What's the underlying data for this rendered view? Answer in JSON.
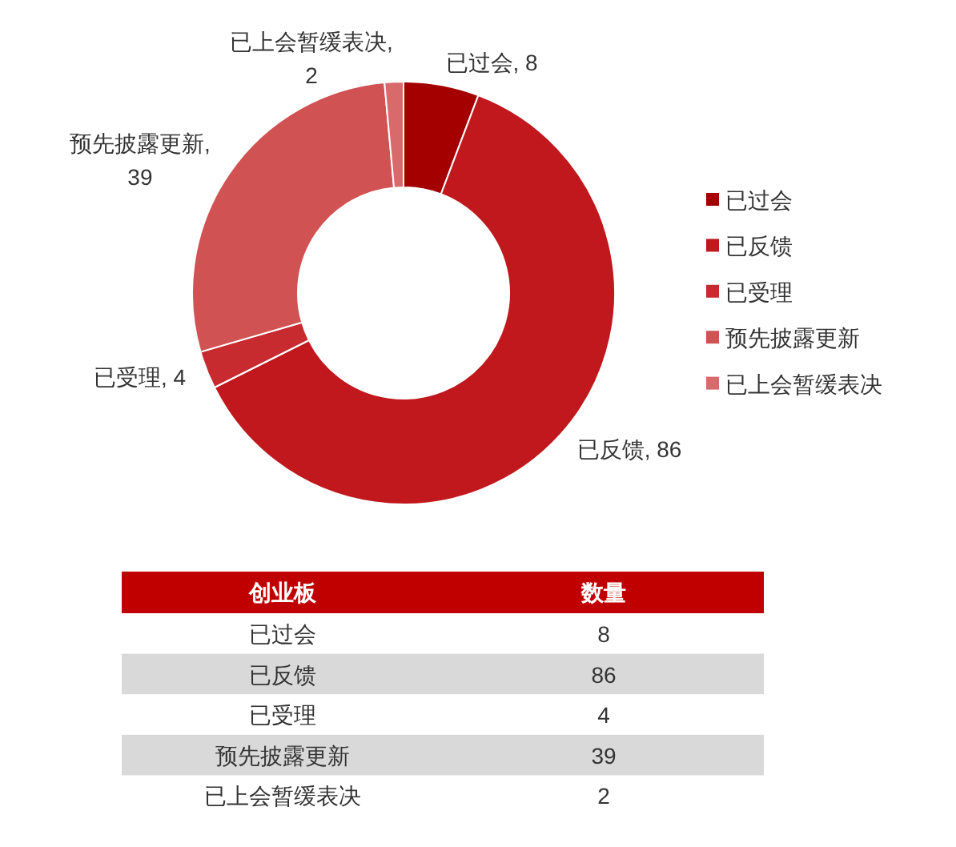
{
  "chart_data": [
    {
      "type": "donut",
      "categories": [
        "已过会",
        "已反馈",
        "已受理",
        "预先披露更新",
        "已上会暂缓表决"
      ],
      "values": [
        8,
        86,
        4,
        39,
        2
      ],
      "value_labels": [
        "已过会, 8",
        "已反馈, 86",
        "已受理, 4",
        "预先披露更新, 39",
        "已上会暂缓表决, 2"
      ],
      "colors": [
        "#a50000",
        "#c0181d",
        "#c82b2f",
        "#d05253",
        "#d96a6b"
      ],
      "legend": "right"
    },
    {
      "type": "other",
      "categories": [
        "已过会",
        "已反馈",
        "已受理",
        "预先披露更新",
        "已上会暂缓表决"
      ],
      "values": [
        8,
        86,
        4,
        39,
        2
      ],
      "data_labels": true,
      "annotations": [
        "创业板",
        "数量"
      ]
    }
  ]
}
